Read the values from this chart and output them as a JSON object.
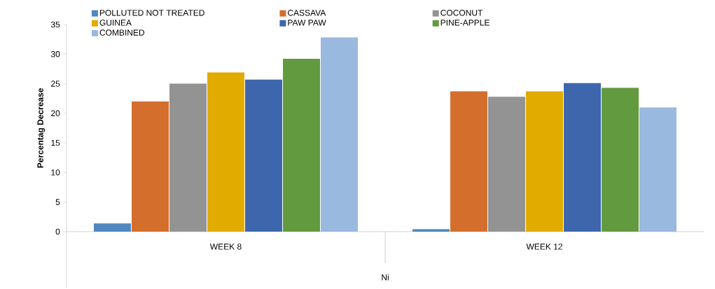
{
  "chart_data": {
    "type": "bar",
    "xlabel": "Ni",
    "ylabel": "Percentag Decrease",
    "categories": [
      "WEEK 8",
      "WEEK 12"
    ],
    "series": [
      {
        "name": "POLLUTED NOT TREATED",
        "color": "#4f87bf",
        "values": [
          1.4,
          0.4
        ]
      },
      {
        "name": "CASSAVA",
        "color": "#d46e2c",
        "values": [
          22.0,
          23.7
        ]
      },
      {
        "name": "COCONUT",
        "color": "#939393",
        "values": [
          25.0,
          22.8
        ]
      },
      {
        "name": "GUINEA",
        "color": "#e2ab00",
        "values": [
          26.9,
          23.7
        ]
      },
      {
        "name": "PAW PAW",
        "color": "#3e66ad",
        "values": [
          25.7,
          25.1
        ]
      },
      {
        "name": "PINE-APPLE",
        "color": "#629a3f",
        "values": [
          29.2,
          24.3
        ]
      },
      {
        "name": "COMBINED",
        "color": "#9ab9df",
        "values": [
          32.8,
          21.0
        ]
      }
    ],
    "ylim": [
      0,
      35
    ],
    "yticks": [
      0,
      5,
      10,
      15,
      20,
      25,
      30,
      35
    ],
    "grid": false,
    "legend": "top"
  }
}
